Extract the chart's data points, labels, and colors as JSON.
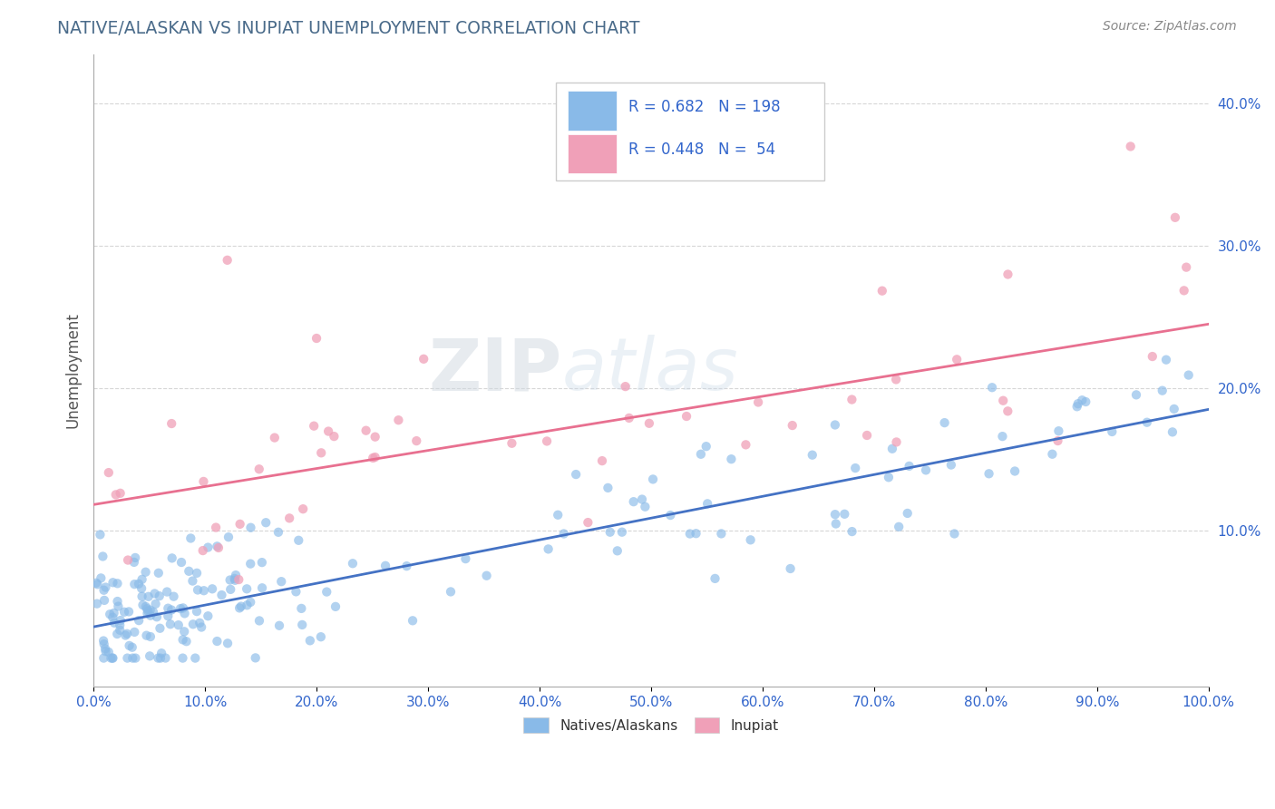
{
  "title": "NATIVE/ALASKAN VS INUPIAT UNEMPLOYMENT CORRELATION CHART",
  "source": "Source: ZipAtlas.com",
  "ylabel": "Unemployment",
  "xlim": [
    0.0,
    1.0
  ],
  "ylim": [
    -0.01,
    0.435
  ],
  "xtick_labels": [
    "0.0%",
    "10.0%",
    "20.0%",
    "30.0%",
    "40.0%",
    "50.0%",
    "60.0%",
    "70.0%",
    "80.0%",
    "90.0%",
    "100.0%"
  ],
  "xtick_vals": [
    0.0,
    0.1,
    0.2,
    0.3,
    0.4,
    0.5,
    0.6,
    0.7,
    0.8,
    0.9,
    1.0
  ],
  "ytick_labels": [
    "10.0%",
    "20.0%",
    "30.0%",
    "40.0%"
  ],
  "ytick_vals": [
    0.1,
    0.2,
    0.3,
    0.4
  ],
  "blue_color": "#89BAE8",
  "pink_color": "#F0A0B8",
  "blue_line_color": "#4472C4",
  "pink_line_color": "#E87090",
  "legend_r_blue": "0.682",
  "legend_n_blue": "198",
  "legend_r_pink": "0.448",
  "legend_n_pink": "54",
  "legend_text_color": "#3366CC",
  "title_color": "#4A6B8A",
  "watermark_zip": "ZIP",
  "watermark_atlas": "atlas",
  "background_color": "#FFFFFF",
  "grid_color": "#CCCCCC",
  "blue_line": {
    "x0": 0.0,
    "y0": 0.032,
    "x1": 1.0,
    "y1": 0.185
  },
  "pink_line": {
    "x0": 0.0,
    "y0": 0.118,
    "x1": 1.0,
    "y1": 0.245
  }
}
